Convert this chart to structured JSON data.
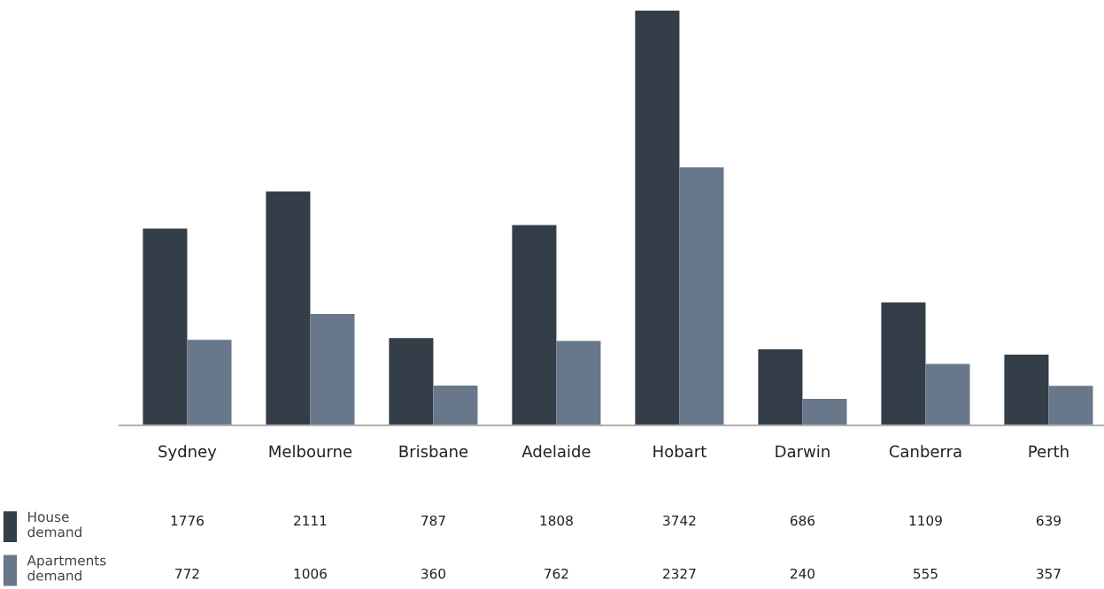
{
  "chart_data": {
    "type": "bar",
    "categories": [
      "Sydney",
      "Melbourne",
      "Brisbane",
      "Adelaide",
      "Hobart",
      "Darwin",
      "Canberra",
      "Perth"
    ],
    "series": [
      {
        "name": "House demand",
        "color": "#333e48",
        "values": [
          1776,
          2111,
          787,
          1808,
          3742,
          686,
          1109,
          639
        ]
      },
      {
        "name": "Apartments demand",
        "color": "#68778a",
        "values": [
          772,
          1006,
          360,
          762,
          2327,
          240,
          555,
          357
        ]
      }
    ],
    "data_labels": true,
    "legend": "bottom left",
    "grid": false
  }
}
